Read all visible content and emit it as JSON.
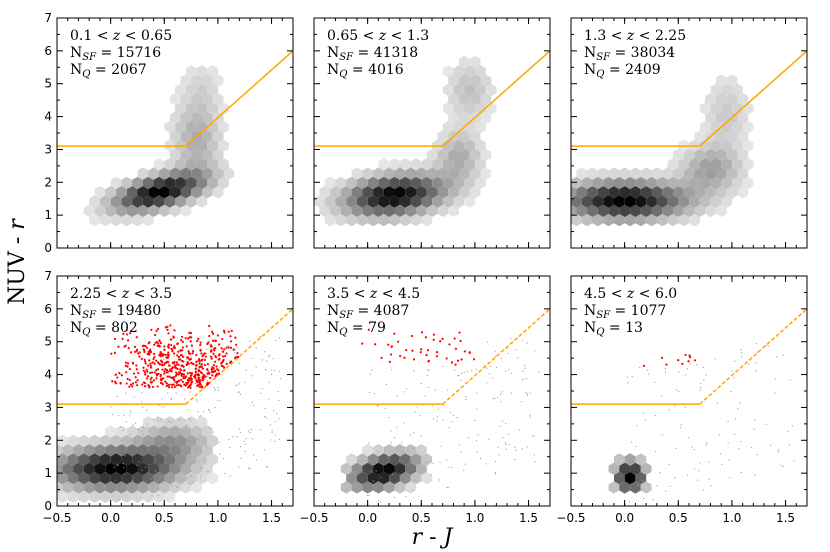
{
  "chart_data": {
    "type": "scatter",
    "layout": "2x3 grid of hexbin density panels with red quiescent-galaxy scatter points",
    "xlabel_var": "r",
    "xlabel_sep": " - ",
    "xlabel_var2": "J",
    "ylabel_main": "NUV - ",
    "ylabel_var": "r",
    "xlim": [
      -0.5,
      1.7
    ],
    "ylim": [
      0,
      7
    ],
    "xticks": [
      -0.5,
      0.0,
      0.5,
      1.0,
      1.5
    ],
    "xtick_labels": [
      "−0.5",
      "0.0",
      "0.5",
      "1.0",
      "1.5"
    ],
    "yticks": [
      0,
      1,
      2,
      3,
      4,
      5,
      6,
      7
    ],
    "ytick_labels": [
      "0",
      "1",
      "2",
      "3",
      "4",
      "5",
      "6",
      "7"
    ],
    "selection_boundary": {
      "points": [
        [
          -0.5,
          3.1
        ],
        [
          0.7,
          3.1
        ],
        [
          1.7,
          6.0
        ]
      ],
      "color": "#ffa500",
      "style_top_row": "solid",
      "style_bottom_row": "dashed slanted segment"
    },
    "colors": {
      "hex_dark": "#000000",
      "quiescent_points": "#ff0000",
      "boundary": "#ffa500",
      "sparse_points": "#999999"
    },
    "panels": [
      {
        "z_low": "0.1",
        "z_high": "0.65",
        "n_sf": "15716",
        "n_q": "2067",
        "red_points": false,
        "density_blobs": [
          {
            "cx": 0.45,
            "cy": 1.7,
            "sx": 0.22,
            "sy": 0.45,
            "rot": -0.5,
            "w": 1.0
          },
          {
            "cx": 0.8,
            "cy": 3.3,
            "sx": 0.16,
            "sy": 0.8,
            "rot": 0.0,
            "w": 0.3
          },
          {
            "cx": 0.85,
            "cy": 4.9,
            "sx": 0.14,
            "sy": 0.6,
            "rot": 0.0,
            "w": 0.12
          }
        ],
        "hex_mask": {
          "xmin": -0.2,
          "xmax": 1.2,
          "ymin": 0.8,
          "ymax": 6.3
        }
      },
      {
        "z_low": "0.65",
        "z_high": "1.3",
        "n_sf": "41318",
        "n_q": "4016",
        "red_points": false,
        "density_blobs": [
          {
            "cx": 0.25,
            "cy": 1.6,
            "sx": 0.3,
            "sy": 0.45,
            "rot": -0.35,
            "w": 1.0
          },
          {
            "cx": 0.85,
            "cy": 2.8,
            "sx": 0.15,
            "sy": 0.55,
            "rot": 0.0,
            "w": 0.3
          },
          {
            "cx": 0.95,
            "cy": 4.8,
            "sx": 0.15,
            "sy": 0.65,
            "rot": 0.0,
            "w": 0.22
          }
        ],
        "hex_mask": {
          "xmin": -0.45,
          "xmax": 1.2,
          "ymin": 0.8,
          "ymax": 6.0
        }
      },
      {
        "z_low": "1.3",
        "z_high": "2.25",
        "n_sf": "38034",
        "n_q": "2409",
        "red_points": false,
        "density_blobs": [
          {
            "cx": 0.0,
            "cy": 1.45,
            "sx": 0.4,
            "sy": 0.4,
            "rot": -0.2,
            "w": 1.0
          },
          {
            "cx": 0.8,
            "cy": 2.4,
            "sx": 0.2,
            "sy": 0.5,
            "rot": 0.0,
            "w": 0.35
          },
          {
            "cx": 0.95,
            "cy": 4.1,
            "sx": 0.15,
            "sy": 0.8,
            "rot": 0.0,
            "w": 0.18
          }
        ],
        "hex_mask": {
          "xmin": -0.5,
          "xmax": 1.3,
          "ymin": 0.7,
          "ymax": 5.8
        }
      },
      {
        "z_low": "2.25",
        "z_high": "3.5",
        "n_sf": "19480",
        "n_q": "802",
        "red_points": true,
        "n_red_drawn": 520,
        "red_region": {
          "xmin": 0.0,
          "xmax": 1.2,
          "ymin": 3.1,
          "ymax": 5.5,
          "cx": 0.7,
          "cy": 3.6
        },
        "density_blobs": [
          {
            "cx": 0.05,
            "cy": 1.15,
            "sx": 0.4,
            "sy": 0.45,
            "rot": -0.2,
            "w": 1.0
          },
          {
            "cx": 0.6,
            "cy": 2.0,
            "sx": 0.25,
            "sy": 0.4,
            "rot": 0.0,
            "w": 0.35
          }
        ],
        "hex_mask": {
          "xmin": -0.5,
          "xmax": 1.0,
          "ymin": 0.2,
          "ymax": 2.9
        }
      },
      {
        "z_low": "3.5",
        "z_high": "4.5",
        "n_sf": "4087",
        "n_q": "79",
        "red_points": true,
        "n_red_drawn": 45,
        "red_region": {
          "xmin": -0.1,
          "xmax": 1.0,
          "ymin": 3.1,
          "ymax": 5.4,
          "cx": 0.65,
          "cy": 4.3
        },
        "density_blobs": [
          {
            "cx": 0.15,
            "cy": 1.05,
            "sx": 0.2,
            "sy": 0.4,
            "rot": -0.3,
            "w": 1.0
          }
        ],
        "hex_mask": {
          "xmin": -0.2,
          "xmax": 0.6,
          "ymin": 0.3,
          "ymax": 2.6
        }
      },
      {
        "z_low": "4.5",
        "z_high": "6.0",
        "n_sf": "1077",
        "n_q": "13",
        "red_points": true,
        "n_red_drawn": 10,
        "red_region": {
          "xmin": -0.3,
          "xmax": 0.7,
          "ymin": 3.2,
          "ymax": 4.8,
          "cx": 0.6,
          "cy": 4.2
        },
        "density_blobs": [
          {
            "cx": 0.05,
            "cy": 0.9,
            "sx": 0.1,
            "sy": 0.35,
            "rot": 0.0,
            "w": 1.0
          }
        ],
        "hex_mask": {
          "xmin": -0.1,
          "xmax": 0.25,
          "ymin": 0.4,
          "ymax": 1.6
        }
      }
    ]
  }
}
